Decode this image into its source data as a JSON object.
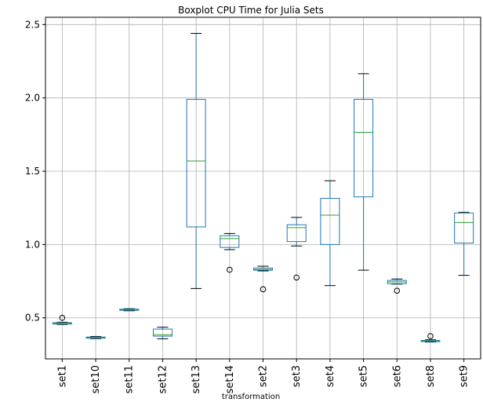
{
  "chart_data": {
    "type": "boxplot",
    "title": "Boxplot CPU Time for Julia Sets",
    "xlabel": "transformation",
    "ylabel": "",
    "ylim": [
      0.22,
      2.55
    ],
    "yticks": [
      0.5,
      1.0,
      1.5,
      2.0,
      2.5
    ],
    "ytick_labels": [
      "0.5",
      "1.0",
      "1.5",
      "2.0",
      "2.5"
    ],
    "grid": true,
    "box_color": "#1f77b4",
    "median_color": "#2ca02c",
    "whisker_cap_color": "#000000",
    "categories": [
      "set1",
      "set10",
      "set11",
      "set12",
      "set13",
      "set14",
      "set2",
      "set3",
      "set4",
      "set5",
      "set6",
      "set8",
      "set9"
    ],
    "boxes": [
      {
        "name": "set1",
        "whislo": 0.455,
        "q1": 0.458,
        "med": 0.462,
        "q3": 0.467,
        "whishi": 0.47,
        "fliers": [
          0.5
        ]
      },
      {
        "name": "set10",
        "whislo": 0.358,
        "q1": 0.361,
        "med": 0.365,
        "q3": 0.369,
        "whishi": 0.373,
        "fliers": []
      },
      {
        "name": "set11",
        "whislo": 0.548,
        "q1": 0.551,
        "med": 0.555,
        "q3": 0.559,
        "whishi": 0.562,
        "fliers": []
      },
      {
        "name": "set12",
        "whislo": 0.357,
        "q1": 0.375,
        "med": 0.385,
        "q3": 0.423,
        "whishi": 0.436,
        "fliers": []
      },
      {
        "name": "set13",
        "whislo": 0.7,
        "q1": 1.12,
        "med": 1.57,
        "q3": 1.99,
        "whishi": 2.44,
        "fliers": []
      },
      {
        "name": "set14",
        "whislo": 0.965,
        "q1": 0.98,
        "med": 1.04,
        "q3": 1.06,
        "whishi": 1.075,
        "fliers": [
          0.828
        ]
      },
      {
        "name": "set2",
        "whislo": 0.82,
        "q1": 0.825,
        "med": 0.83,
        "q3": 0.84,
        "whishi": 0.852,
        "fliers": [
          0.695
        ]
      },
      {
        "name": "set3",
        "whislo": 0.99,
        "q1": 1.02,
        "med": 1.115,
        "q3": 1.135,
        "whishi": 1.185,
        "fliers": [
          0.775
        ]
      },
      {
        "name": "set4",
        "whislo": 0.72,
        "q1": 1.0,
        "med": 1.2,
        "q3": 1.315,
        "whishi": 1.435,
        "fliers": []
      },
      {
        "name": "set5",
        "whislo": 0.825,
        "q1": 1.325,
        "med": 1.765,
        "q3": 1.99,
        "whishi": 2.165,
        "fliers": []
      },
      {
        "name": "set6",
        "whislo": 0.73,
        "q1": 0.733,
        "med": 0.745,
        "q3": 0.755,
        "whishi": 0.765,
        "fliers": [
          0.685
        ]
      },
      {
        "name": "set8",
        "whislo": 0.335,
        "q1": 0.338,
        "med": 0.342,
        "q3": 0.346,
        "whishi": 0.35,
        "fliers": [
          0.375
        ]
      },
      {
        "name": "set9",
        "whislo": 0.79,
        "q1": 1.01,
        "med": 1.15,
        "q3": 1.215,
        "whishi": 1.22,
        "fliers": []
      }
    ]
  }
}
